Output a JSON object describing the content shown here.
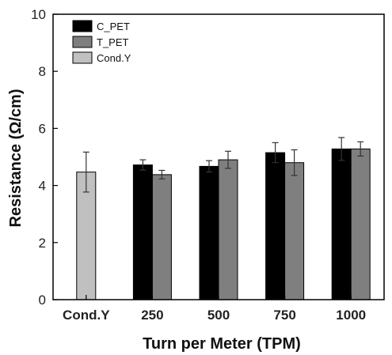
{
  "chart_data": {
    "type": "bar",
    "xlabel": "Turn per Meter (TPM)",
    "ylabel": "Resistance (Ω/cm)",
    "ylim": [
      0,
      10
    ],
    "yticks": [
      "0",
      "2",
      "4",
      "6",
      "8",
      "10"
    ],
    "categories": [
      "Cond.Y",
      "250",
      "500",
      "750",
      "1000"
    ],
    "legend_position": "top-left",
    "grid": false,
    "series": [
      {
        "name": "C_PET",
        "color": "#000000",
        "values": [
          null,
          4.72,
          4.67,
          5.15,
          5.28
        ],
        "errors": [
          null,
          0.18,
          0.2,
          0.35,
          0.4
        ]
      },
      {
        "name": "T_PET",
        "color": "#7f7f7f",
        "values": [
          null,
          4.38,
          4.9,
          4.8,
          5.28
        ],
        "errors": [
          null,
          0.15,
          0.3,
          0.45,
          0.25
        ]
      },
      {
        "name": "Cond.Y",
        "color": "#c0c0c0",
        "values": [
          4.47,
          null,
          null,
          null,
          null
        ],
        "errors": [
          0.7,
          null,
          null,
          null,
          null
        ]
      }
    ]
  }
}
